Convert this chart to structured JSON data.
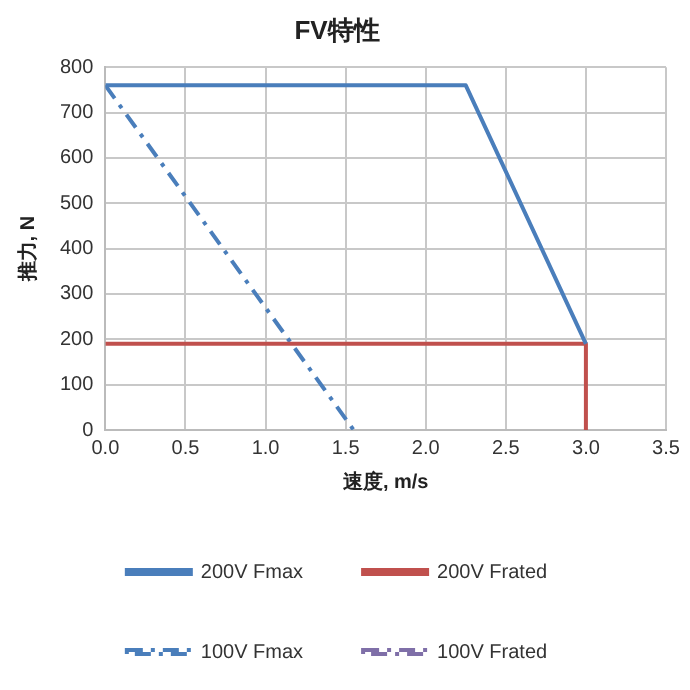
{
  "chart_data": {
    "type": "line",
    "title": "FV特性",
    "xlabel": "速度, m/s",
    "ylabel": "推力, N",
    "xlim": [
      0,
      3.5
    ],
    "xticks": [
      {
        "value": 0,
        "label": "0.0"
      },
      {
        "value": 0.5,
        "label": "0.5"
      },
      {
        "value": 1,
        "label": "1.0"
      },
      {
        "value": 1.5,
        "label": "1.5"
      },
      {
        "value": 2,
        "label": "2.0"
      },
      {
        "value": 2.5,
        "label": "2.5"
      },
      {
        "value": 3,
        "label": "3.0"
      },
      {
        "value": 3.5,
        "label": "3.5"
      }
    ],
    "ylim": [
      0,
      800
    ],
    "yticks": [
      0,
      100,
      200,
      300,
      400,
      500,
      600,
      700,
      800
    ],
    "grid": true,
    "legend": "bottom",
    "marker": "none",
    "series": [
      {
        "name": "200V Fmax",
        "color": "#4a7ebb",
        "line_style": "solid",
        "x": [
          0,
          2.25,
          3
        ],
        "values": [
          760,
          760,
          190
        ]
      },
      {
        "name": "200V Frated",
        "color": "#c0504d",
        "line_style": "solid",
        "x": [
          0,
          3,
          3
        ],
        "values": [
          190,
          190,
          0
        ]
      },
      {
        "name": "100V Fmax",
        "color": "#4a7ebb",
        "line_style": "dashed",
        "x": [
          0,
          1.55
        ],
        "values": [
          760,
          0
        ]
      },
      {
        "name": "100V Frated",
        "color": "#7f6fa8",
        "line_style": "dashed"
      }
    ]
  }
}
